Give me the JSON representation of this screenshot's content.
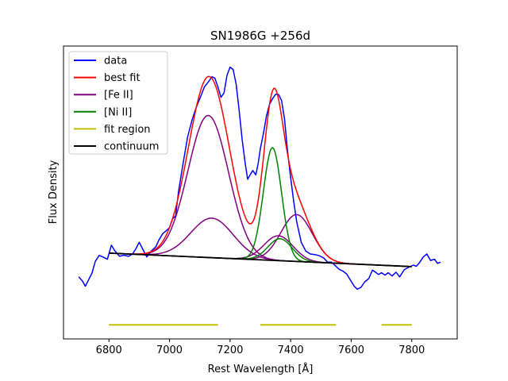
{
  "chart_data": {
    "type": "line",
    "title": "SN1986G  +256d",
    "xlabel": "Rest Wavelength [Å]",
    "ylabel": "Flux Density",
    "xlim": [
      6650,
      7950
    ],
    "ylim": [
      0,
      1
    ],
    "x_ticks": [
      6800,
      7000,
      7200,
      7400,
      7600,
      7800
    ],
    "y_ticks": [],
    "legend_position": "top-left",
    "series": [
      {
        "name": "data",
        "color": "#0000ff",
        "points": [
          [
            6700,
            0.212
          ],
          [
            6712,
            0.198
          ],
          [
            6722,
            0.18
          ],
          [
            6732,
            0.2
          ],
          [
            6744,
            0.225
          ],
          [
            6755,
            0.265
          ],
          [
            6768,
            0.285
          ],
          [
            6780,
            0.28
          ],
          [
            6795,
            0.272
          ],
          [
            6808,
            0.32
          ],
          [
            6820,
            0.3
          ],
          [
            6835,
            0.282
          ],
          [
            6850,
            0.286
          ],
          [
            6865,
            0.282
          ],
          [
            6878,
            0.29
          ],
          [
            6890,
            0.31
          ],
          [
            6900,
            0.33
          ],
          [
            6912,
            0.306
          ],
          [
            6925,
            0.28
          ],
          [
            6940,
            0.3
          ],
          [
            6955,
            0.315
          ],
          [
            6965,
            0.338
          ],
          [
            6978,
            0.36
          ],
          [
            6990,
            0.37
          ],
          [
            7000,
            0.38
          ],
          [
            7010,
            0.41
          ],
          [
            7020,
            0.42
          ],
          [
            7030,
            0.505
          ],
          [
            7045,
            0.6
          ],
          [
            7060,
            0.69
          ],
          [
            7075,
            0.75
          ],
          [
            7088,
            0.79
          ],
          [
            7100,
            0.82
          ],
          [
            7115,
            0.86
          ],
          [
            7130,
            0.88
          ],
          [
            7140,
            0.895
          ],
          [
            7150,
            0.89
          ],
          [
            7160,
            0.86
          ],
          [
            7170,
            0.825
          ],
          [
            7180,
            0.84
          ],
          [
            7190,
            0.9
          ],
          [
            7200,
            0.928
          ],
          [
            7210,
            0.92
          ],
          [
            7220,
            0.87
          ],
          [
            7230,
            0.78
          ],
          [
            7240,
            0.68
          ],
          [
            7250,
            0.6
          ],
          [
            7258,
            0.545
          ],
          [
            7266,
            0.56
          ],
          [
            7275,
            0.575
          ],
          [
            7285,
            0.56
          ],
          [
            7293,
            0.6
          ],
          [
            7300,
            0.65
          ],
          [
            7310,
            0.7
          ],
          [
            7320,
            0.76
          ],
          [
            7330,
            0.8
          ],
          [
            7340,
            0.82
          ],
          [
            7350,
            0.835
          ],
          [
            7360,
            0.835
          ],
          [
            7370,
            0.815
          ],
          [
            7380,
            0.75
          ],
          [
            7390,
            0.64
          ],
          [
            7400,
            0.55
          ],
          [
            7410,
            0.47
          ],
          [
            7420,
            0.4
          ],
          [
            7435,
            0.33
          ],
          [
            7450,
            0.3
          ],
          [
            7465,
            0.29
          ],
          [
            7480,
            0.288
          ],
          [
            7495,
            0.284
          ],
          [
            7510,
            0.276
          ],
          [
            7522,
            0.262
          ],
          [
            7535,
            0.262
          ],
          [
            7548,
            0.25
          ],
          [
            7560,
            0.238
          ],
          [
            7572,
            0.232
          ],
          [
            7585,
            0.222
          ],
          [
            7598,
            0.2
          ],
          [
            7610,
            0.18
          ],
          [
            7620,
            0.17
          ],
          [
            7632,
            0.176
          ],
          [
            7645,
            0.195
          ],
          [
            7658,
            0.206
          ],
          [
            7670,
            0.235
          ],
          [
            7680,
            0.228
          ],
          [
            7690,
            0.22
          ],
          [
            7700,
            0.226
          ],
          [
            7712,
            0.218
          ],
          [
            7722,
            0.226
          ],
          [
            7735,
            0.215
          ],
          [
            7748,
            0.228
          ],
          [
            7760,
            0.212
          ],
          [
            7775,
            0.236
          ],
          [
            7790,
            0.245
          ],
          [
            7805,
            0.252
          ],
          [
            7815,
            0.248
          ],
          [
            7825,
            0.26
          ],
          [
            7838,
            0.28
          ],
          [
            7850,
            0.29
          ],
          [
            7862,
            0.268
          ],
          [
            7875,
            0.272
          ],
          [
            7885,
            0.258
          ],
          [
            7895,
            0.262
          ]
        ]
      },
      {
        "name": "best fit",
        "color": "#ff0000",
        "model": "sum",
        "components": [
          {
            "center": 7128,
            "sigma": 67,
            "amplitude": 0.485
          },
          {
            "center": 7140,
            "sigma": 70,
            "amplitude": 0.135
          },
          {
            "center": 7360,
            "sigma": 48,
            "amplitude": 0.085
          },
          {
            "center": 7420,
            "sigma": 52,
            "amplitude": 0.16
          },
          {
            "center": 7340,
            "sigma": 30,
            "amplitude": 0.385
          },
          {
            "center": 7365,
            "sigma": 40,
            "amplitude": 0.075
          }
        ],
        "xrange": [
          6800,
          7800
        ]
      },
      {
        "name": "[Fe II]",
        "color": "#800080",
        "model": "gaussians",
        "components": [
          {
            "center": 7128,
            "sigma": 67,
            "amplitude": 0.485
          },
          {
            "center": 7140,
            "sigma": 70,
            "amplitude": 0.135
          },
          {
            "center": 7360,
            "sigma": 48,
            "amplitude": 0.085
          },
          {
            "center": 7420,
            "sigma": 52,
            "amplitude": 0.16
          }
        ],
        "xrange": [
          6800,
          7800
        ]
      },
      {
        "name": "[Ni II]",
        "color": "#008000",
        "model": "gaussians",
        "components": [
          {
            "center": 7340,
            "sigma": 30,
            "amplitude": 0.385
          },
          {
            "center": 7365,
            "sigma": 40,
            "amplitude": 0.075
          }
        ],
        "xrange": [
          6800,
          7800
        ]
      },
      {
        "name": "fit region",
        "color": "#bfbf00",
        "segments": [
          [
            6800,
            7160
          ],
          [
            7300,
            7550
          ],
          [
            7700,
            7800
          ]
        ],
        "y": 0.048
      },
      {
        "name": "continuum",
        "color": "#000000",
        "line": {
          "x0": 6800,
          "y0": 0.293,
          "x1": 7800,
          "y1": 0.247
        }
      }
    ]
  }
}
